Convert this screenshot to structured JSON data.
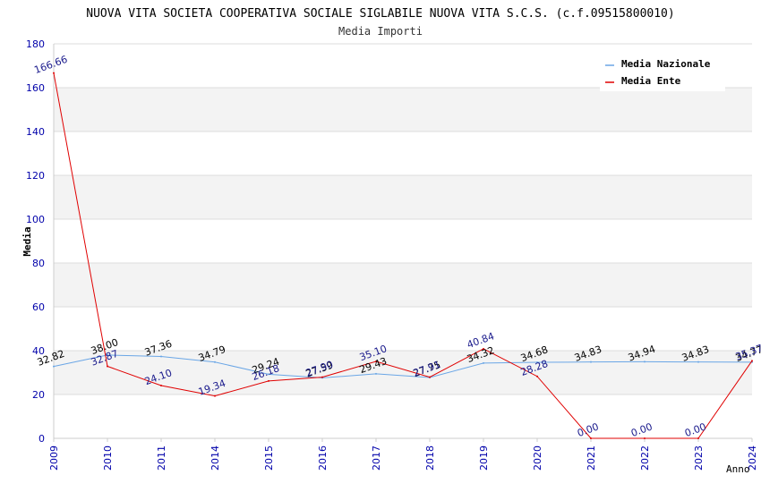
{
  "chart_data": {
    "type": "line",
    "title": "NUOVA VITA SOCIETA COOPERATIVA SOCIALE SIGLABILE NUOVA VITA S.C.S. (c.f.09515800010)",
    "subtitle": "Media Importi",
    "xlabel": "Anno",
    "ylabel": "Media",
    "ylim": [
      0,
      180
    ],
    "yticks": [
      0,
      20,
      40,
      60,
      80,
      100,
      120,
      140,
      160,
      180
    ],
    "categories": [
      "2009",
      "2010",
      "2011",
      "2014",
      "2015",
      "2016",
      "2017",
      "2018",
      "2019",
      "2020",
      "2021",
      "2022",
      "2023",
      "2024"
    ],
    "grid": true,
    "legend_position": "top-right",
    "series": [
      {
        "name": "Media Nazionale",
        "color": "#6aa6e6",
        "label_color": "#000000",
        "values": [
          32.82,
          38.0,
          37.36,
          34.79,
          29.24,
          27.59,
          29.43,
          27.75,
          34.32,
          34.68,
          34.83,
          34.94,
          34.83,
          34.77
        ],
        "labels": [
          "32.82",
          "38.00",
          "37.36",
          "34.79",
          "29.24",
          "27.59",
          "29.43",
          "27.75",
          "34.32",
          "34.68",
          "34.83",
          "34.94",
          "34.83",
          "34.77"
        ]
      },
      {
        "name": "Media Ente",
        "color": "#e00000",
        "label_color": "#1a1a8c",
        "values": [
          166.66,
          32.87,
          24.1,
          19.34,
          26.18,
          27.9,
          35.1,
          27.91,
          40.84,
          28.28,
          0.0,
          0.0,
          0.0,
          35.37
        ],
        "labels": [
          "166.66",
          "32.87",
          "24.10",
          "19.34",
          "26.18",
          "27.90",
          "35.10",
          "27.91",
          "40.84",
          "28.28",
          "0.00",
          "0.00",
          "0.00",
          "35.37"
        ]
      }
    ]
  }
}
